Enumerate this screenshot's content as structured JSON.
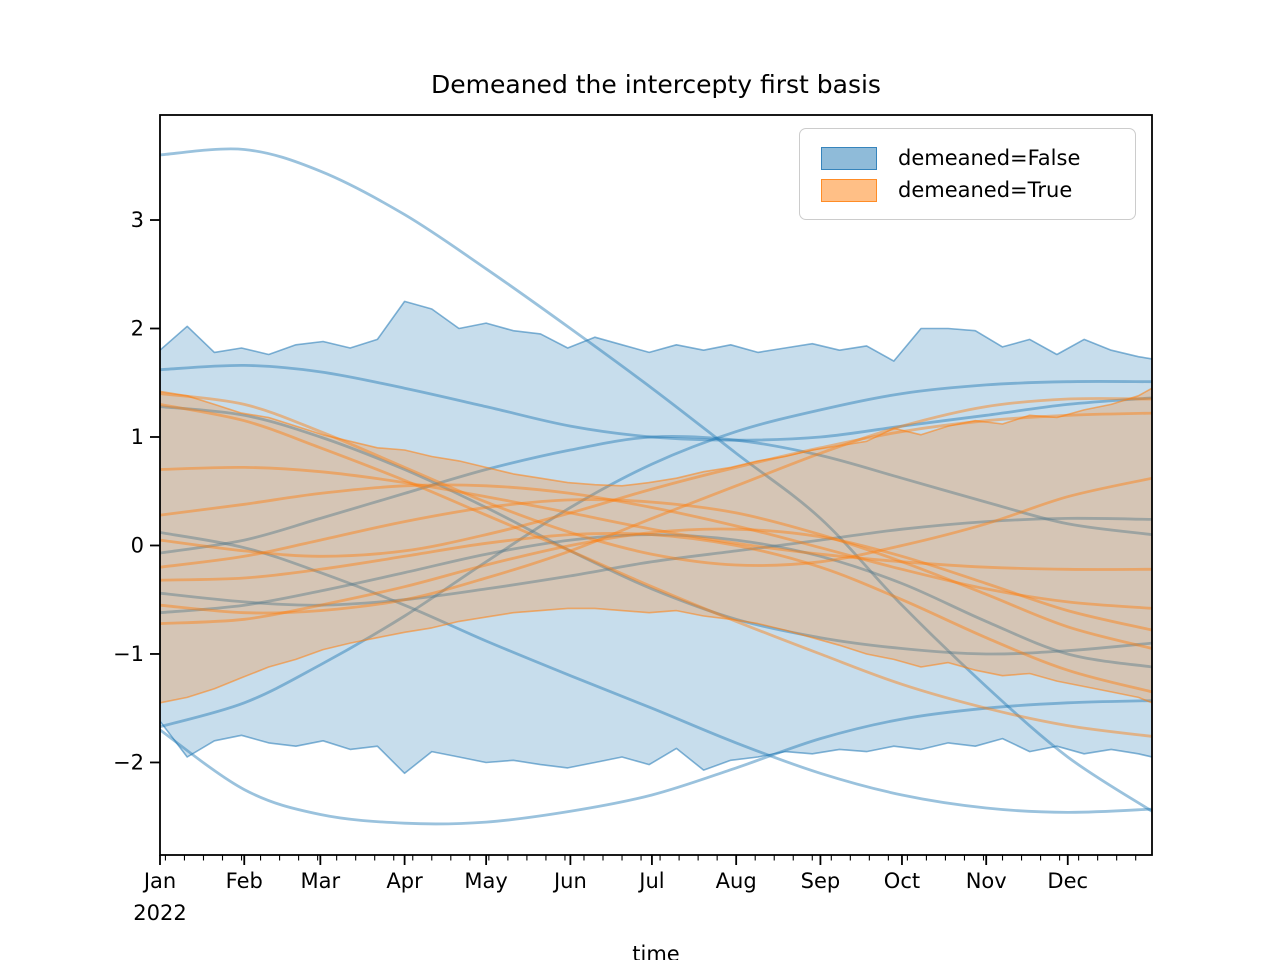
{
  "figure": {
    "title": "Demeaned the intercepty first basis",
    "xlabel": "time",
    "legend": [
      {
        "label": "demeaned=False",
        "color": "#1f77b4"
      },
      {
        "label": "demeaned=True",
        "color": "#ff7f0e"
      }
    ]
  },
  "chart_data": {
    "type": "line",
    "title": "Demeaned the intercepty first basis",
    "xlabel": "time",
    "legend_position": "upper right",
    "grid": false,
    "x_axis": {
      "unit": "days_of_2022",
      "range": [
        0,
        365
      ],
      "major_ticks": [
        {
          "t": 0,
          "label": "Jan",
          "sublabel": "2022"
        },
        {
          "t": 31,
          "label": "Feb"
        },
        {
          "t": 59,
          "label": "Mar"
        },
        {
          "t": 90,
          "label": "Apr"
        },
        {
          "t": 120,
          "label": "May"
        },
        {
          "t": 151,
          "label": "Jun"
        },
        {
          "t": 181,
          "label": "Jul"
        },
        {
          "t": 212,
          "label": "Aug"
        },
        {
          "t": 243,
          "label": "Sep"
        },
        {
          "t": 273,
          "label": "Oct"
        },
        {
          "t": 304,
          "label": "Nov"
        },
        {
          "t": 334,
          "label": "Dec"
        }
      ],
      "minor_tick_start": 2,
      "minor_tick_step": 7
    },
    "y_axis": {
      "range": [
        -2.853,
        3.968
      ],
      "ticks": [
        3,
        2,
        1,
        0,
        -1,
        -2
      ],
      "tick_labels": [
        "3",
        "2",
        "1",
        "0",
        "−1",
        "−2"
      ]
    },
    "band_t": [
      0,
      10,
      20,
      30,
      40,
      50,
      60,
      70,
      80,
      90,
      100,
      110,
      120,
      130,
      140,
      150,
      160,
      170,
      180,
      190,
      200,
      210,
      220,
      230,
      240,
      250,
      260,
      270,
      280,
      290,
      300,
      310,
      320,
      330,
      340,
      350,
      360,
      365
    ],
    "line_t": [
      0,
      31,
      59,
      90,
      120,
      151,
      181,
      212,
      243,
      273,
      304,
      334,
      365
    ],
    "groups": [
      {
        "name": "demeaned=False",
        "color": "#1f77b4",
        "band_top": [
          1.8,
          2.02,
          1.78,
          1.82,
          1.76,
          1.85,
          1.88,
          1.82,
          1.9,
          2.25,
          2.18,
          2.0,
          2.05,
          1.98,
          1.95,
          1.82,
          1.92,
          1.85,
          1.78,
          1.85,
          1.8,
          1.85,
          1.78,
          1.82,
          1.86,
          1.8,
          1.84,
          1.7,
          2.0,
          2.0,
          1.98,
          1.83,
          1.9,
          1.76,
          1.9,
          1.8,
          1.74,
          1.72
        ],
        "band_bottom": [
          -1.62,
          -1.95,
          -1.8,
          -1.75,
          -1.82,
          -1.85,
          -1.8,
          -1.88,
          -1.85,
          -2.1,
          -1.9,
          -1.95,
          -2.0,
          -1.98,
          -2.02,
          -2.05,
          -2.0,
          -1.95,
          -2.02,
          -1.87,
          -2.07,
          -1.98,
          -1.95,
          -1.9,
          -1.92,
          -1.88,
          -1.9,
          -1.85,
          -1.88,
          -1.82,
          -1.85,
          -1.78,
          -1.9,
          -1.85,
          -1.92,
          -1.88,
          -1.92,
          -1.95
        ],
        "lines": [
          [
            3.6,
            3.65,
            3.45,
            3.05,
            2.55,
            2.0,
            1.45,
            0.85,
            0.25,
            -0.55,
            -1.3,
            -1.95,
            -2.45
          ],
          [
            -1.7,
            -2.25,
            -2.48,
            -2.56,
            -2.55,
            -2.45,
            -2.3,
            -2.05,
            -1.78,
            -1.6,
            -1.5,
            -1.45,
            -1.43
          ],
          [
            0.12,
            -0.02,
            -0.25,
            -0.55,
            -0.88,
            -1.2,
            -1.5,
            -1.82,
            -2.1,
            -2.3,
            -2.42,
            -2.46,
            -2.43
          ],
          [
            -1.67,
            -1.45,
            -1.1,
            -0.65,
            -0.15,
            0.35,
            0.75,
            1.05,
            1.25,
            1.4,
            1.48,
            1.51,
            1.51
          ],
          [
            1.28,
            1.2,
            1.0,
            0.7,
            0.35,
            -0.05,
            -0.4,
            -0.68,
            -0.85,
            -0.95,
            -1.0,
            -0.97,
            -0.9
          ],
          [
            1.62,
            1.66,
            1.6,
            1.45,
            1.28,
            1.1,
            1.0,
            0.97,
            1.0,
            1.1,
            1.2,
            1.3,
            1.36
          ],
          [
            -0.07,
            0.05,
            0.25,
            0.48,
            0.7,
            0.88,
            1.0,
            0.97,
            0.83,
            0.62,
            0.4,
            0.2,
            0.1
          ],
          [
            -0.44,
            -0.52,
            -0.55,
            -0.5,
            -0.4,
            -0.28,
            -0.15,
            -0.05,
            0.05,
            0.15,
            0.22,
            0.25,
            0.24
          ],
          [
            -0.62,
            -0.55,
            -0.42,
            -0.25,
            -0.08,
            0.05,
            0.1,
            0.05,
            -0.1,
            -0.35,
            -0.7,
            -1.0,
            -1.12
          ]
        ]
      },
      {
        "name": "demeaned=True",
        "color": "#ff7f0e",
        "band_top": [
          1.42,
          1.38,
          1.3,
          1.22,
          1.18,
          1.1,
          1.02,
          0.96,
          0.9,
          0.88,
          0.82,
          0.78,
          0.72,
          0.66,
          0.62,
          0.58,
          0.56,
          0.55,
          0.58,
          0.62,
          0.68,
          0.72,
          0.78,
          0.82,
          0.88,
          0.92,
          0.96,
          1.08,
          1.02,
          1.1,
          1.15,
          1.12,
          1.2,
          1.18,
          1.25,
          1.3,
          1.38,
          1.45
        ],
        "band_bottom": [
          -1.45,
          -1.4,
          -1.32,
          -1.22,
          -1.12,
          -1.05,
          -0.96,
          -0.9,
          -0.85,
          -0.8,
          -0.76,
          -0.7,
          -0.66,
          -0.62,
          -0.6,
          -0.58,
          -0.58,
          -0.6,
          -0.62,
          -0.6,
          -0.65,
          -0.68,
          -0.72,
          -0.78,
          -0.85,
          -0.92,
          -1.0,
          -1.05,
          -1.12,
          -1.08,
          -1.15,
          -1.2,
          -1.18,
          -1.25,
          -1.3,
          -1.35,
          -1.4,
          -1.45
        ],
        "lines": [
          [
            1.4,
            1.3,
            1.05,
            0.72,
            0.4,
            0.12,
            -0.08,
            -0.18,
            -0.15,
            0.0,
            0.2,
            0.45,
            0.62
          ],
          [
            1.3,
            1.15,
            0.9,
            0.6,
            0.28,
            -0.05,
            -0.38,
            -0.7,
            -1.0,
            -1.28,
            -1.5,
            -1.66,
            -1.76
          ],
          [
            0.7,
            0.72,
            0.68,
            0.58,
            0.45,
            0.3,
            0.15,
            0.02,
            -0.08,
            -0.15,
            -0.2,
            -0.22,
            -0.22
          ],
          [
            0.28,
            0.38,
            0.48,
            0.55,
            0.55,
            0.48,
            0.35,
            0.18,
            -0.02,
            -0.22,
            -0.4,
            -0.52,
            -0.58
          ],
          [
            0.05,
            -0.05,
            -0.1,
            -0.05,
            0.1,
            0.3,
            0.52,
            0.72,
            0.9,
            1.05,
            1.15,
            1.2,
            1.22
          ],
          [
            -0.2,
            -0.1,
            0.05,
            0.22,
            0.35,
            0.42,
            0.4,
            0.3,
            0.1,
            -0.15,
            -0.45,
            -0.75,
            -0.95
          ],
          [
            -0.55,
            -0.62,
            -0.6,
            -0.5,
            -0.3,
            -0.05,
            0.25,
            0.55,
            0.85,
            1.1,
            1.28,
            1.35,
            1.35
          ],
          [
            -0.72,
            -0.68,
            -0.55,
            -0.38,
            -0.18,
            0.0,
            0.12,
            0.15,
            0.08,
            -0.1,
            -0.35,
            -0.6,
            -0.78
          ],
          [
            -0.32,
            -0.3,
            -0.22,
            -0.1,
            0.02,
            0.1,
            0.1,
            0.0,
            -0.2,
            -0.5,
            -0.85,
            -1.15,
            -1.35
          ]
        ]
      }
    ],
    "style": {
      "line_width": 2.8,
      "line_alpha": 0.45,
      "fill_alpha": 0.25,
      "band_edge_alpha": 0.55,
      "band_edge_width": 1.6,
      "swatch_fill_alpha": 0.5,
      "swatch_edge_alpha": 0.8,
      "spine_color": "#000000",
      "tick_color": "#000000",
      "text_color": "#000000"
    }
  }
}
